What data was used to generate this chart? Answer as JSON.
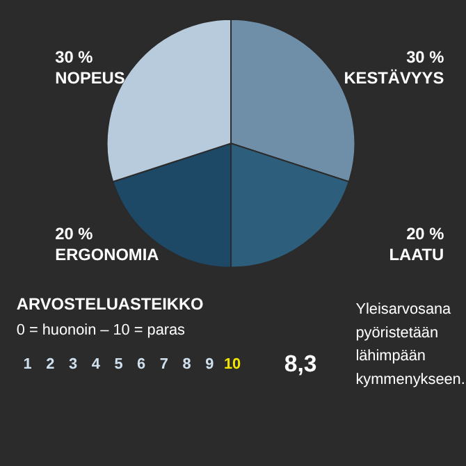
{
  "chart_data": {
    "type": "pie",
    "categories": [
      "KESTÄVYYS",
      "LAATU",
      "ERGONOMIA",
      "NOPEUS"
    ],
    "values": [
      30,
      20,
      20,
      30
    ],
    "value_labels": [
      "30 %",
      "20 %",
      "20 %",
      "30 %"
    ],
    "colors": [
      "#6f8fa9",
      "#2d5f7d",
      "#1d4866",
      "#b7cbdd"
    ],
    "annotations": [
      "ARVOSTELUASTEIKKO",
      "0 = huonoin – 10 = paras",
      "1",
      "2",
      "3",
      "4",
      "5",
      "6",
      "7",
      "8",
      "9",
      "10",
      "8,3",
      "Yleisarvosana pyöristetään lähimpään kymmenykseen."
    ]
  }
}
